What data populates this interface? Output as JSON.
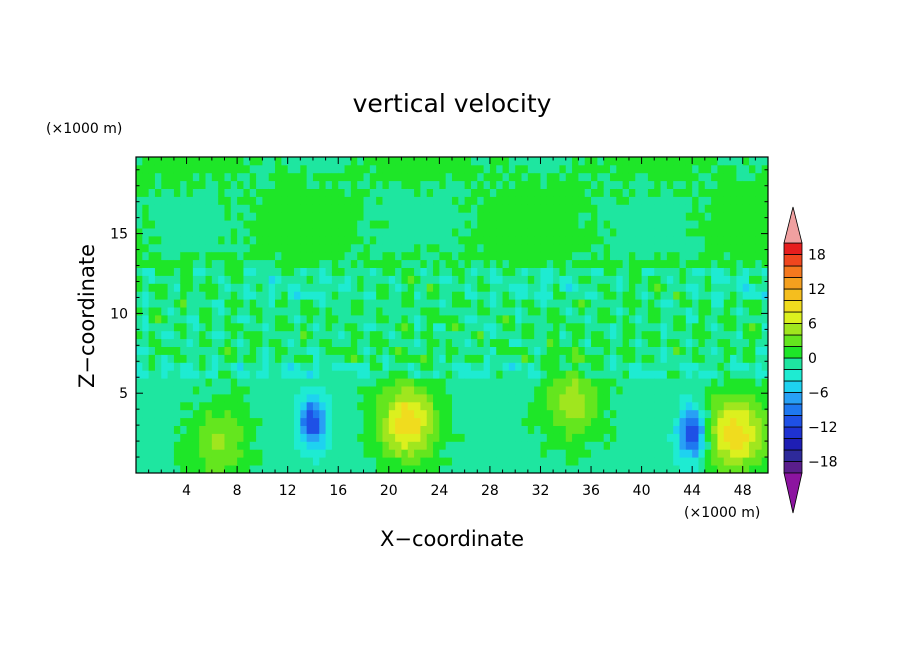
{
  "chart_data": {
    "type": "heatmap",
    "title": "vertical velocity",
    "xlabel": "X−coordinate",
    "ylabel": "Z−coordinate",
    "x_unit_label": "(×1000 m)",
    "y_unit_label": "(×1000 m)",
    "xlim": [
      0,
      50
    ],
    "ylim": [
      0,
      19.8
    ],
    "x_ticks": [
      4,
      8,
      12,
      16,
      20,
      24,
      28,
      32,
      36,
      40,
      44,
      48
    ],
    "x_tick_labels": [
      "4",
      "8",
      "12",
      "16",
      "20",
      "24",
      "28",
      "32",
      "36",
      "40",
      "44",
      "48"
    ],
    "y_ticks": [
      5,
      10,
      15
    ],
    "y_tick_labels": [
      "5",
      "10",
      "15"
    ],
    "colorbar": {
      "levels": [
        -20,
        -18,
        -16,
        -14,
        -12,
        -10,
        -8,
        -6,
        -4,
        -2,
        0,
        2,
        4,
        6,
        8,
        10,
        12,
        14,
        16,
        18,
        20
      ],
      "tick_values": [
        -18,
        -12,
        -6,
        0,
        6,
        12,
        18
      ],
      "tick_labels": [
        "−18",
        "−12",
        "−6",
        "0",
        "6",
        "12",
        "18"
      ],
      "colors": [
        "#5a1e8c",
        "#2e2a9a",
        "#1e1eb4",
        "#1e32d2",
        "#1e50e6",
        "#1e78f0",
        "#28a0f5",
        "#1ed2f0",
        "#1eebd2",
        "#1ee6a0",
        "#1ee628",
        "#64e61e",
        "#a0e61e",
        "#dcf01e",
        "#f0dc1e",
        "#f5be1e",
        "#f5a01e",
        "#f5781e",
        "#f0461e",
        "#e61e1e"
      ],
      "under_color": "#8c14a0",
      "over_color": "#f0a0a0"
    },
    "features": [
      {
        "label": "updraft",
        "x": 6.5,
        "z": 2.0,
        "peak": 5
      },
      {
        "label": "downdraft",
        "x": 14.0,
        "z": 3.2,
        "peak": -11
      },
      {
        "label": "updraft",
        "x": 21.5,
        "z": 3.2,
        "peak": 10
      },
      {
        "label": "updraft",
        "x": 34.5,
        "z": 4.5,
        "peak": 6
      },
      {
        "label": "downdraft",
        "x": 44.0,
        "z": 2.5,
        "peak": -12
      },
      {
        "label": "updraft",
        "x": 47.5,
        "z": 2.5,
        "peak": 10
      }
    ]
  }
}
